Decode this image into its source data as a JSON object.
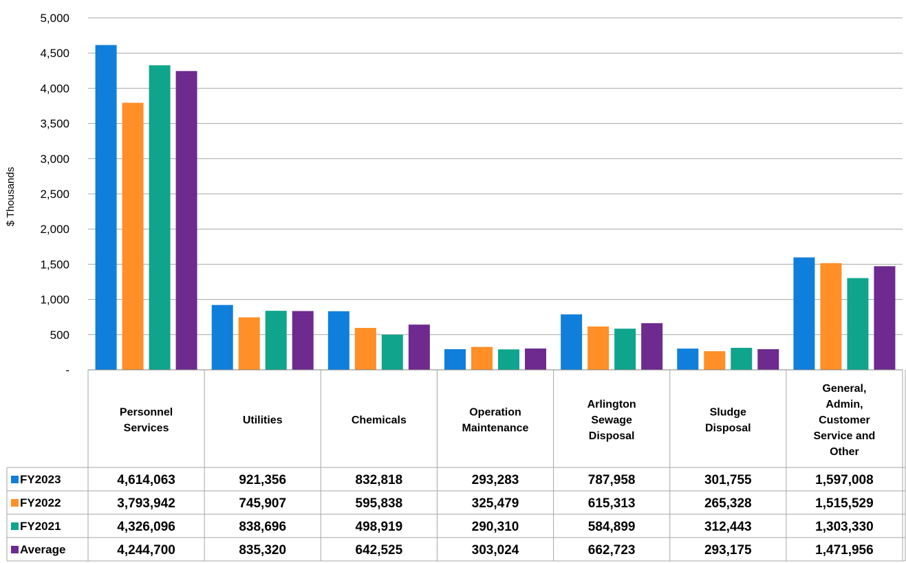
{
  "chart_data": {
    "type": "bar",
    "ylabel": "$ Thousands",
    "ylim": [
      0,
      5000
    ],
    "ytick_step": 500,
    "ytick_labels": [
      "-",
      "500",
      "1,000",
      "1,500",
      "2,000",
      "2,500",
      "3,000",
      "3,500",
      "4,000",
      "4,500",
      "5,000"
    ],
    "grid": true,
    "legend_position": "data-table-rows",
    "categories": [
      [
        "Personnel",
        "Services"
      ],
      [
        "Utilities"
      ],
      [
        "Chemicals"
      ],
      [
        "Operation",
        "Maintenance"
      ],
      [
        "Arlington",
        "Sewage",
        "Disposal"
      ],
      [
        "Sludge",
        "Disposal"
      ],
      [
        "General,",
        "Admin,",
        "Customer",
        "Service and",
        "Other"
      ]
    ],
    "series": [
      {
        "name": "FY2023",
        "color": "#0F7FDB",
        "values": [
          4614063,
          921356,
          832818,
          293283,
          787958,
          301755,
          1597008
        ],
        "labels": [
          "4,614,063",
          "921,356",
          "832,818",
          "293,283",
          "787,958",
          "301,755",
          "1,597,008"
        ]
      },
      {
        "name": "FY2022",
        "color": "#FF8F26",
        "values": [
          3793942,
          745907,
          595838,
          325479,
          615313,
          265328,
          1515529
        ],
        "labels": [
          "3,793,942",
          "745,907",
          "595,838",
          "325,479",
          "615,313",
          "265,328",
          "1,515,529"
        ]
      },
      {
        "name": "FY2021",
        "color": "#0FA58C",
        "values": [
          4326096,
          838696,
          498919,
          290310,
          584899,
          312443,
          1303330
        ],
        "labels": [
          "4,326,096",
          "838,696",
          "498,919",
          "290,310",
          "584,899",
          "312,443",
          "1,303,330"
        ]
      },
      {
        "name": "Average",
        "color": "#6E2A8E",
        "values": [
          4244700,
          835320,
          642525,
          303024,
          662723,
          293175,
          1471956
        ],
        "labels": [
          "4,244,700",
          "835,320",
          "642,525",
          "303,024",
          "662,723",
          "293,175",
          "1,471,956"
        ]
      }
    ]
  }
}
